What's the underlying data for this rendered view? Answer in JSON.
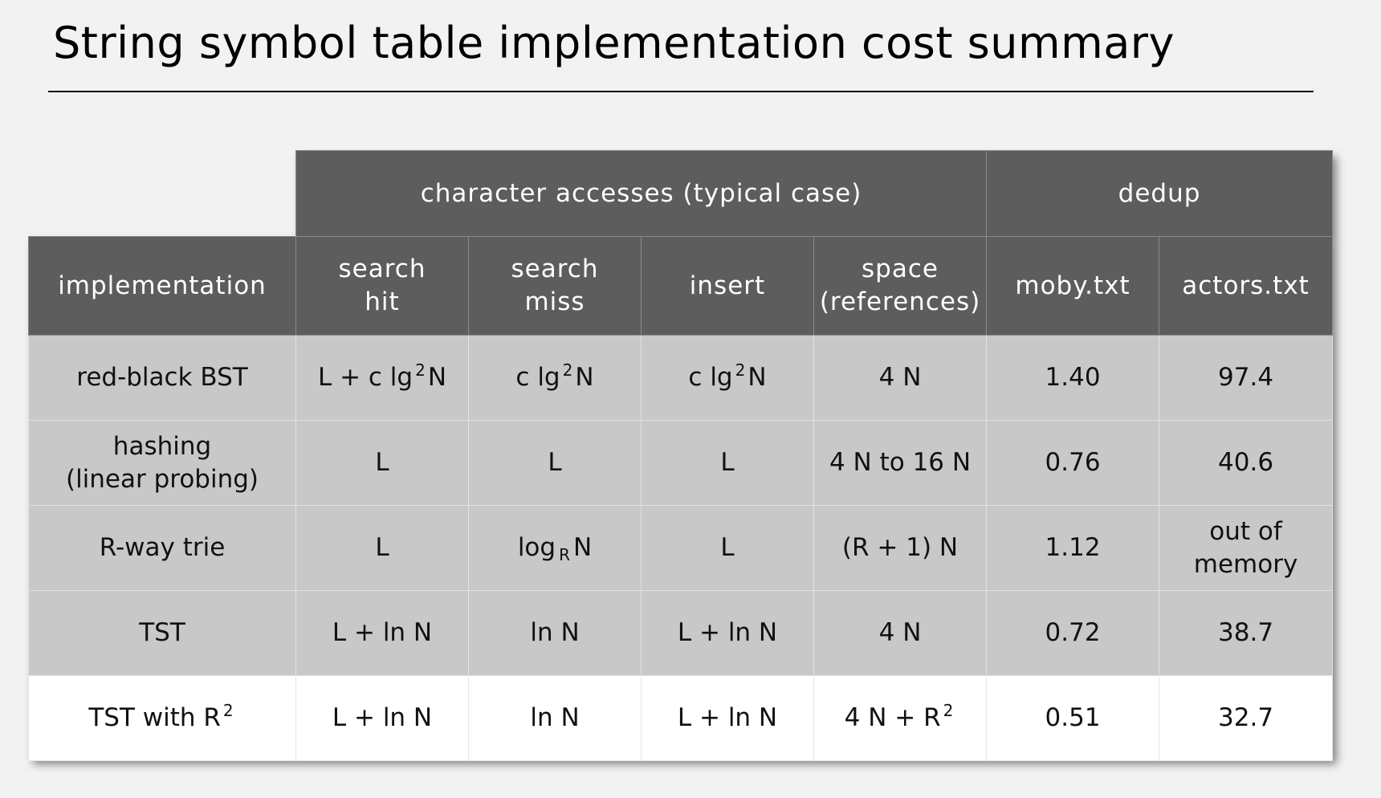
{
  "title": "String symbol table implementation cost summary",
  "table": {
    "group_headers": {
      "character_accesses": "character accesses (typical case)",
      "dedup": "dedup"
    },
    "column_headers": {
      "implementation": "implementation",
      "search_hit": "search\nhit",
      "search_miss": "search\nmiss",
      "insert": "insert",
      "space": "space\n(references)",
      "moby": "moby.txt",
      "actors": "actors.txt"
    },
    "rows": [
      {
        "implementation": "red-black BST",
        "search_hit": {
          "pre": "L + c lg",
          "sup": "2",
          "post": "N"
        },
        "search_miss": {
          "pre": "c lg",
          "sup": "2",
          "post": "N"
        },
        "insert": {
          "pre": "c lg",
          "sup": "2",
          "post": "N"
        },
        "space": "4 N",
        "moby": "1.40",
        "actors": "97.4"
      },
      {
        "implementation": "hashing\n(linear probing)",
        "search_hit": "L",
        "search_miss": "L",
        "insert": "L",
        "space": "4 N to 16 N",
        "moby": "0.76",
        "actors": "40.6"
      },
      {
        "implementation": "R-way trie",
        "search_hit": "L",
        "search_miss": {
          "pre": "log",
          "sub": "R",
          "post": "N"
        },
        "insert": "L",
        "space": "(R + 1) N",
        "moby": "1.12",
        "actors": "out of\nmemory"
      },
      {
        "implementation": "TST",
        "search_hit": "L + ln N",
        "search_miss": "ln N",
        "insert": "L + ln N",
        "space": "4 N",
        "moby": "0.72",
        "actors": "38.7"
      },
      {
        "implementation": {
          "pre": "TST with R",
          "sup": "2"
        },
        "search_hit": "L + ln N",
        "search_miss": "ln N",
        "insert": "L + ln N",
        "space": {
          "pre": "4 N + R",
          "sup": "2"
        },
        "moby": "0.51",
        "actors": "32.7"
      }
    ]
  }
}
